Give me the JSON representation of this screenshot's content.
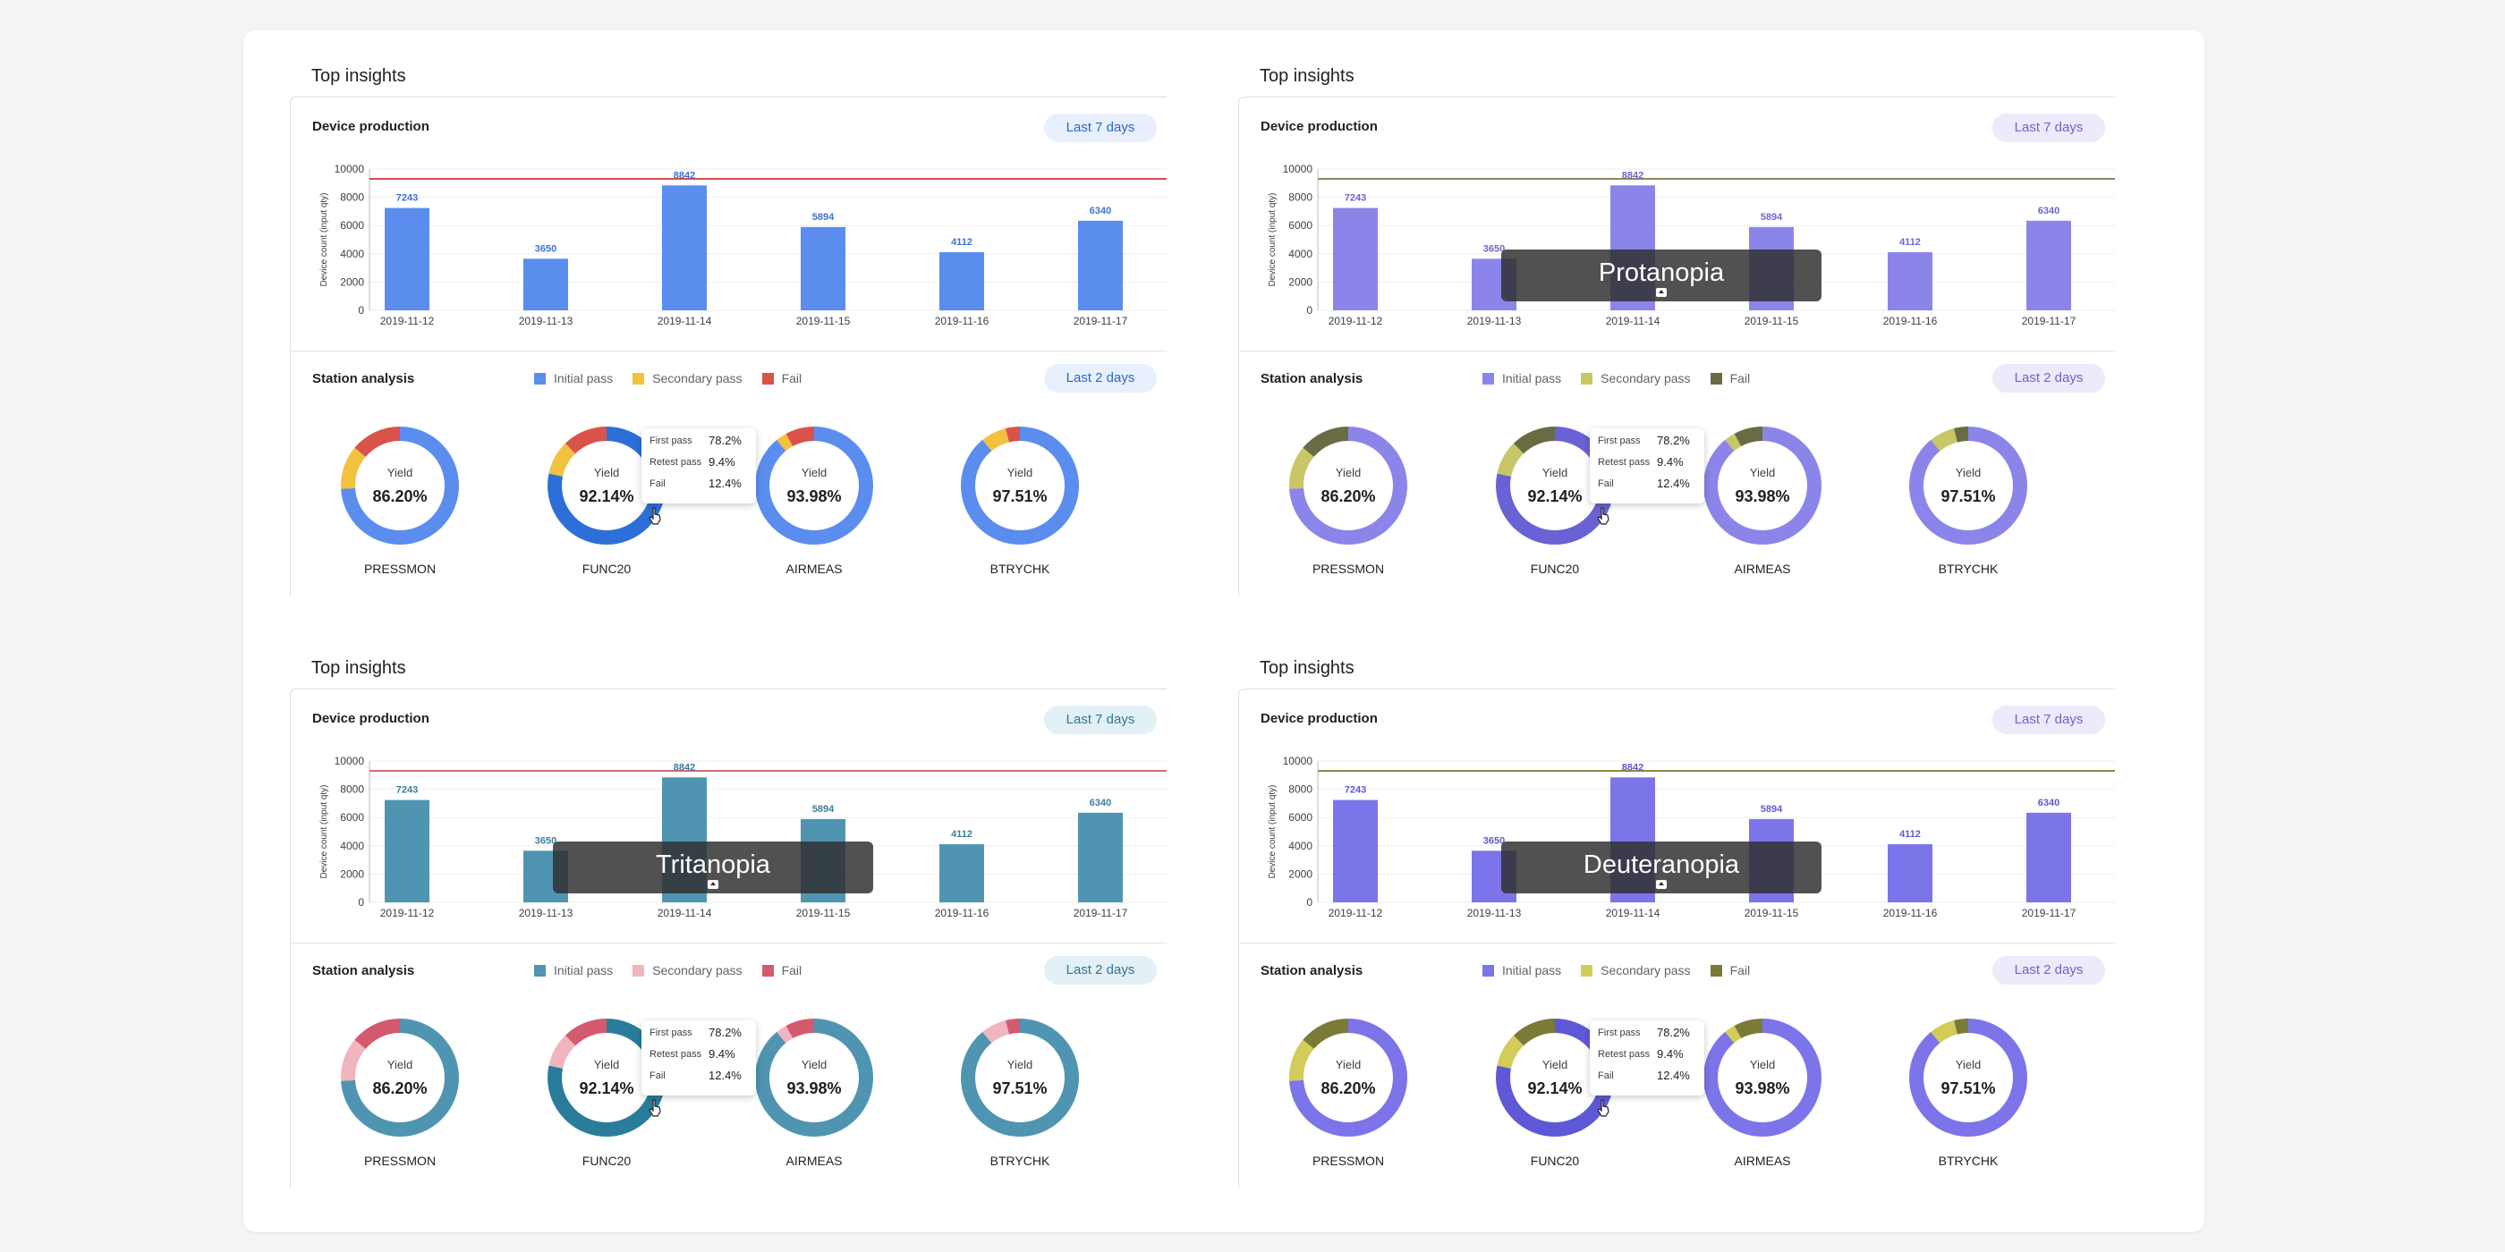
{
  "defaults": {
    "section_title": "Top insights",
    "production_title": "Device production",
    "production_range": "Last 7 days",
    "station_title": "Station analysis",
    "station_range": "Last 2 days",
    "legend": [
      "Initial pass",
      "Secondary pass",
      "Fail"
    ],
    "yield_label": "Yield",
    "tooltip": {
      "rows": [
        {
          "label": "First pass",
          "value": "78.2%"
        },
        {
          "label": "Retest pass",
          "value": "9.4%"
        },
        {
          "label": "Fail",
          "value": "12.4%"
        }
      ]
    }
  },
  "panels": [
    {
      "id": "standard",
      "overlay_label": "",
      "colors": {
        "bar": "#5b8def",
        "bar_label": "#3e72d6",
        "initial": "#5b8def",
        "secondary": "#f2c13e",
        "fail": "#d9534a",
        "highlight": "#2d6fd8",
        "target_line": "#d94c4c",
        "pill_bg": "#e8f0fd",
        "pill_text": "#2a67d3"
      }
    },
    {
      "id": "protanopia",
      "overlay_label": "Protanopia",
      "colors": {
        "bar": "#8b85ea",
        "bar_label": "#6c66cf",
        "initial": "#8b85ea",
        "secondary": "#c8c666",
        "fail": "#6b6b43",
        "highlight": "#6962d4",
        "target_line": "#8a8a5e",
        "pill_bg": "#eceafb",
        "pill_text": "#6b65cd"
      }
    },
    {
      "id": "tritanopia",
      "overlay_label": "Tritanopia",
      "colors": {
        "bar": "#4f95b1",
        "bar_label": "#3b7f9b",
        "initial": "#4f95b1",
        "secondary": "#f1b5bf",
        "fail": "#d45a6e",
        "highlight": "#2a7c9b",
        "target_line": "#d46b7a",
        "pill_bg": "#e3f0f5",
        "pill_text": "#2f7896"
      }
    },
    {
      "id": "deuteranopia",
      "overlay_label": "Deuteranopia",
      "colors": {
        "bar": "#7c74e9",
        "bar_label": "#6059d0",
        "initial": "#7c74e9",
        "secondary": "#d2cc59",
        "fail": "#7b7a36",
        "highlight": "#5f58d6",
        "target_line": "#8a8a44",
        "pill_bg": "#eceafb",
        "pill_text": "#6b65cd"
      }
    }
  ],
  "chart_data": [
    {
      "type": "bar",
      "title": "Device production",
      "ylabel": "Device count (input qty)",
      "categories": [
        "2019-11-12",
        "2019-11-13",
        "2019-11-14",
        "2019-11-15",
        "2019-11-16",
        "2019-11-17"
      ],
      "values": [
        7243,
        3650,
        8842,
        5894,
        4112,
        6340
      ],
      "ylim": [
        0,
        10000
      ],
      "yticks": [
        0,
        2000,
        4000,
        6000,
        8000,
        10000
      ],
      "target_line": 9300,
      "grid": true
    },
    {
      "type": "pie",
      "title": "Station analysis",
      "series_labels": [
        "Initial pass",
        "Secondary pass",
        "Fail"
      ],
      "stations": [
        {
          "name": "PRESSMON",
          "yield": "86.20%",
          "values": [
            0.74,
            0.12,
            0.14
          ]
        },
        {
          "name": "FUNC20",
          "yield": "92.14%",
          "values": [
            0.782,
            0.094,
            0.124
          ]
        },
        {
          "name": "AIRMEAS",
          "yield": "93.98%",
          "values": [
            0.89,
            0.03,
            0.08
          ]
        },
        {
          "name": "BTRYCHK",
          "yield": "97.51%",
          "values": [
            0.89,
            0.07,
            0.04
          ]
        }
      ]
    }
  ]
}
